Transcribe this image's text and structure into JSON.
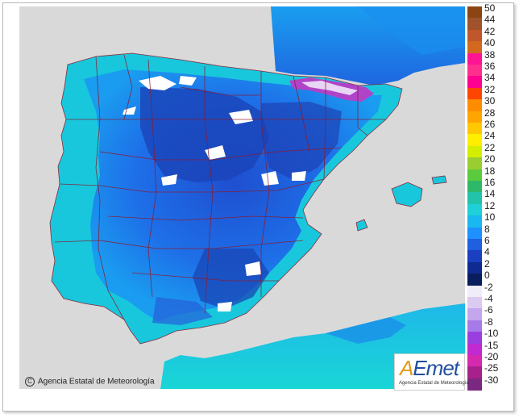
{
  "legend": {
    "labels": [
      "50",
      "44",
      "42",
      "40",
      "38",
      "36",
      "34",
      "32",
      "30",
      "28",
      "26",
      "24",
      "22",
      "20",
      "18",
      "16",
      "14",
      "12",
      "10",
      "8",
      "6",
      "4",
      "2",
      "0",
      "-2",
      "-4",
      "-6",
      "-8",
      "-10",
      "-15",
      "-20",
      "-25",
      "-30"
    ],
    "colors": [
      "#8b4513",
      "#a0522d",
      "#c0572c",
      "#d2691e",
      "#ff1493",
      "#ff2f8e",
      "#ff0090",
      "#ff4500",
      "#ff8c00",
      "#ffa500",
      "#ffc800",
      "#ffee00",
      "#d4ee00",
      "#9acd32",
      "#5acb3c",
      "#2fb86a",
      "#21c4a8",
      "#1fd0d8",
      "#1ab8f0",
      "#1e90ff",
      "#1f5fe0",
      "#1a3fc0",
      "#0f2a90",
      "#0a1d5e",
      "#f0ecf8",
      "#dccbf0",
      "#c4a6ee",
      "#a67ae8",
      "#9b3ee0",
      "#c02ad0",
      "#d52ab0",
      "#a8208a",
      "#7d2880"
    ]
  },
  "copyright": "Agencia Estatal de Meteorología",
  "logo": {
    "brand_a": "A",
    "brand_rest": "Emet",
    "subtitle": "Agencia Estatal de Meteorología"
  }
}
